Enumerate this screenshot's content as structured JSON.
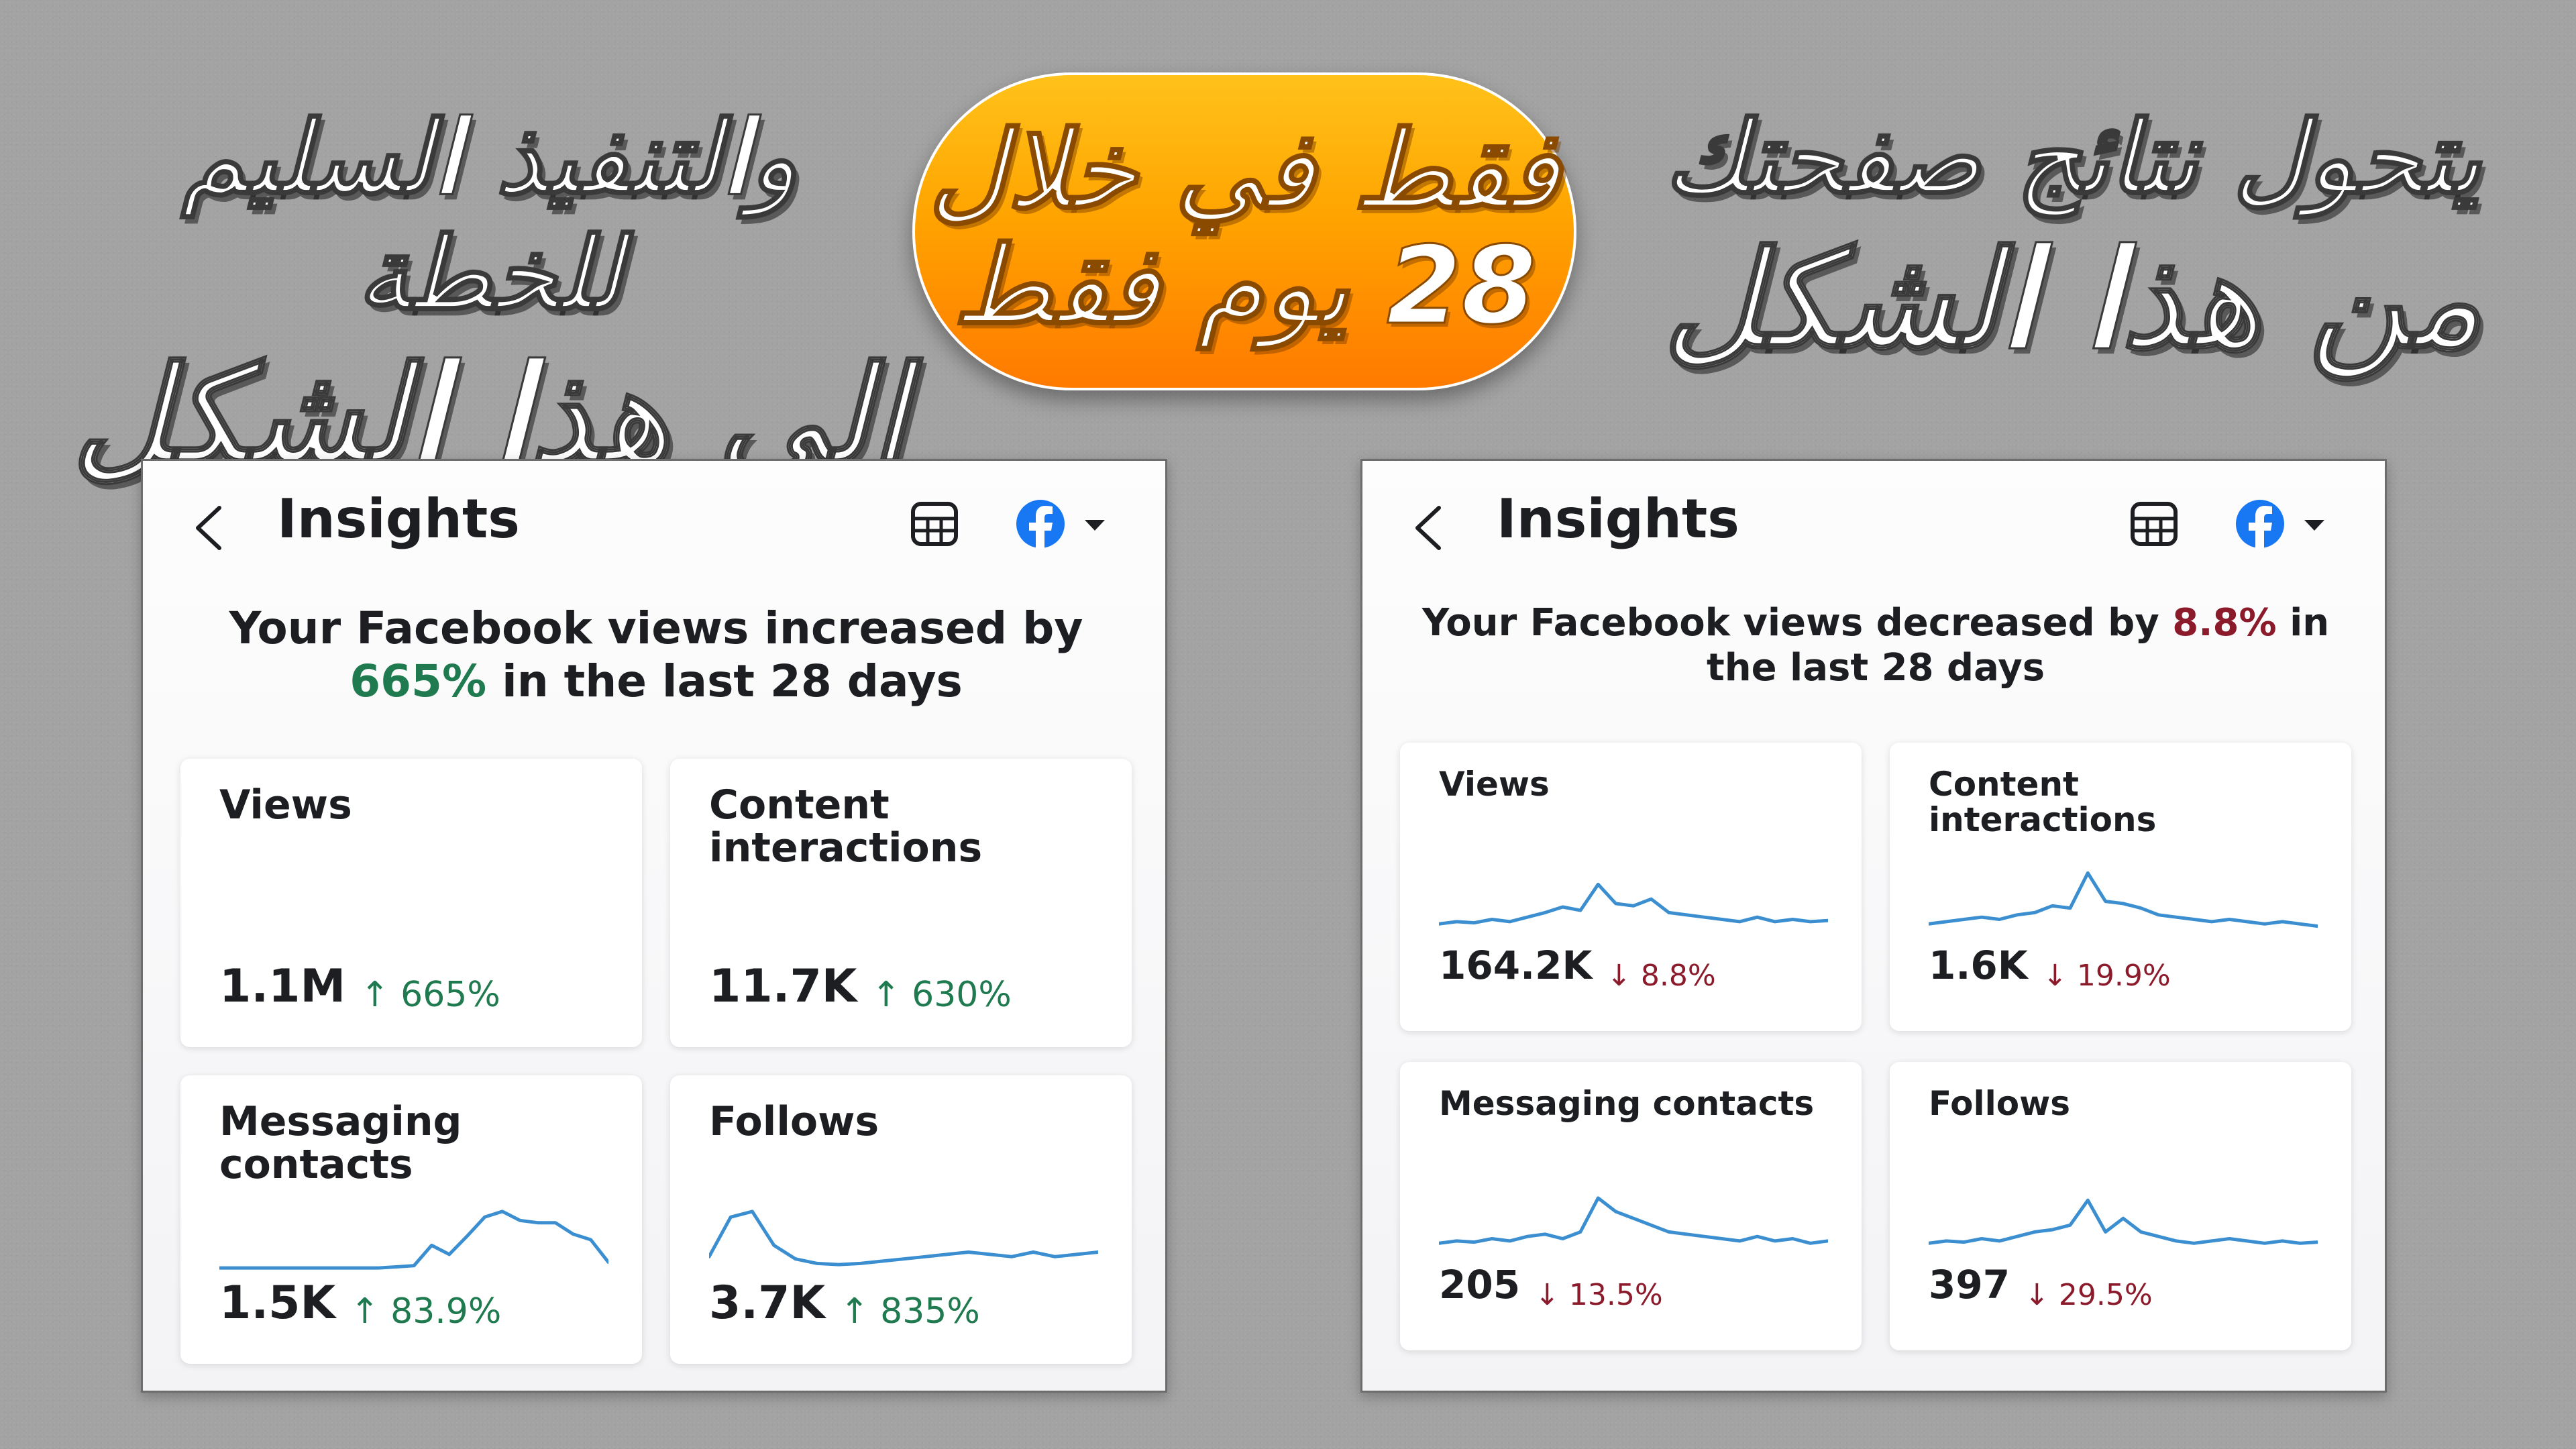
{
  "headlines": {
    "right_line1": "يتحول نتائج صفحتك",
    "right_line2": "من هذا الشكل",
    "center_line1": "فقط في خلال",
    "center_line2": "28 يوم فقط",
    "left_line1": "والتنفيذ السليم للخطة",
    "left_line2": "إلى هذا الشكل"
  },
  "colors": {
    "increase": "#1f7a4f",
    "decrease": "#8b1a2b",
    "sparkline": "#3b8fd0",
    "facebook": "#1877f2",
    "pill": "#ffa400"
  },
  "icons": {
    "back": "chevron-left-icon",
    "table": "table-icon",
    "facebook": "facebook-icon",
    "dropdown": "caret-down-icon",
    "up": "arrow-up-icon",
    "down": "arrow-down-icon"
  },
  "left_panel": {
    "title": "Insights",
    "summary_prefix": "Your Facebook views increased by ",
    "summary_pct": "665%",
    "summary_suffix": " in the last 28 days",
    "cards": [
      {
        "title": "Views",
        "value": "1.1M",
        "arrow": "↑",
        "delta": "665%",
        "spark": []
      },
      {
        "title": "Content interactions",
        "value": "11.7K",
        "arrow": "↑",
        "delta": "630%",
        "spark": []
      },
      {
        "title": "Messaging contacts",
        "value": "1.5K",
        "arrow": "↑",
        "delta": "83.9%",
        "spark": [
          10,
          10,
          10,
          10,
          10,
          10,
          10,
          10,
          10,
          10,
          11,
          12,
          30,
          22,
          38,
          55,
          60,
          52,
          50,
          50,
          40,
          35,
          15
        ]
      },
      {
        "title": "Follows",
        "value": "3.7K",
        "arrow": "↑",
        "delta": "835%",
        "spark": [
          20,
          55,
          60,
          30,
          18,
          14,
          13,
          14,
          16,
          18,
          20,
          22,
          24,
          22,
          20,
          24,
          20,
          22,
          24
        ]
      }
    ]
  },
  "right_panel": {
    "title": "Insights",
    "summary_prefix": "Your Facebook views decreased by ",
    "summary_pct": "8.8%",
    "summary_suffix": " in the last 28 days",
    "cards": [
      {
        "title": "Views",
        "value": "164.2K",
        "arrow": "↓",
        "delta": "8.8%",
        "spark": [
          20,
          22,
          21,
          24,
          22,
          26,
          30,
          35,
          32,
          55,
          38,
          36,
          42,
          30,
          28,
          26,
          24,
          22,
          26,
          22,
          24,
          22,
          23
        ]
      },
      {
        "title": "Content interactions",
        "value": "1.6K",
        "arrow": "↓",
        "delta": "19.9%",
        "spark": [
          20,
          22,
          24,
          26,
          24,
          28,
          30,
          36,
          34,
          65,
          40,
          38,
          34,
          28,
          26,
          24,
          22,
          24,
          22,
          20,
          22,
          20,
          18
        ]
      },
      {
        "title": "Messaging contacts",
        "value": "205",
        "arrow": "↓",
        "delta": "13.5%",
        "spark": [
          20,
          22,
          21,
          24,
          22,
          26,
          28,
          24,
          30,
          60,
          48,
          42,
          36,
          30,
          28,
          26,
          24,
          22,
          26,
          22,
          24,
          20,
          22
        ]
      },
      {
        "title": "Follows",
        "value": "397",
        "arrow": "↓",
        "delta": "29.5%",
        "spark": [
          20,
          22,
          21,
          24,
          22,
          26,
          30,
          32,
          36,
          58,
          30,
          42,
          30,
          26,
          22,
          20,
          22,
          24,
          22,
          20,
          22,
          20,
          21
        ]
      }
    ]
  }
}
